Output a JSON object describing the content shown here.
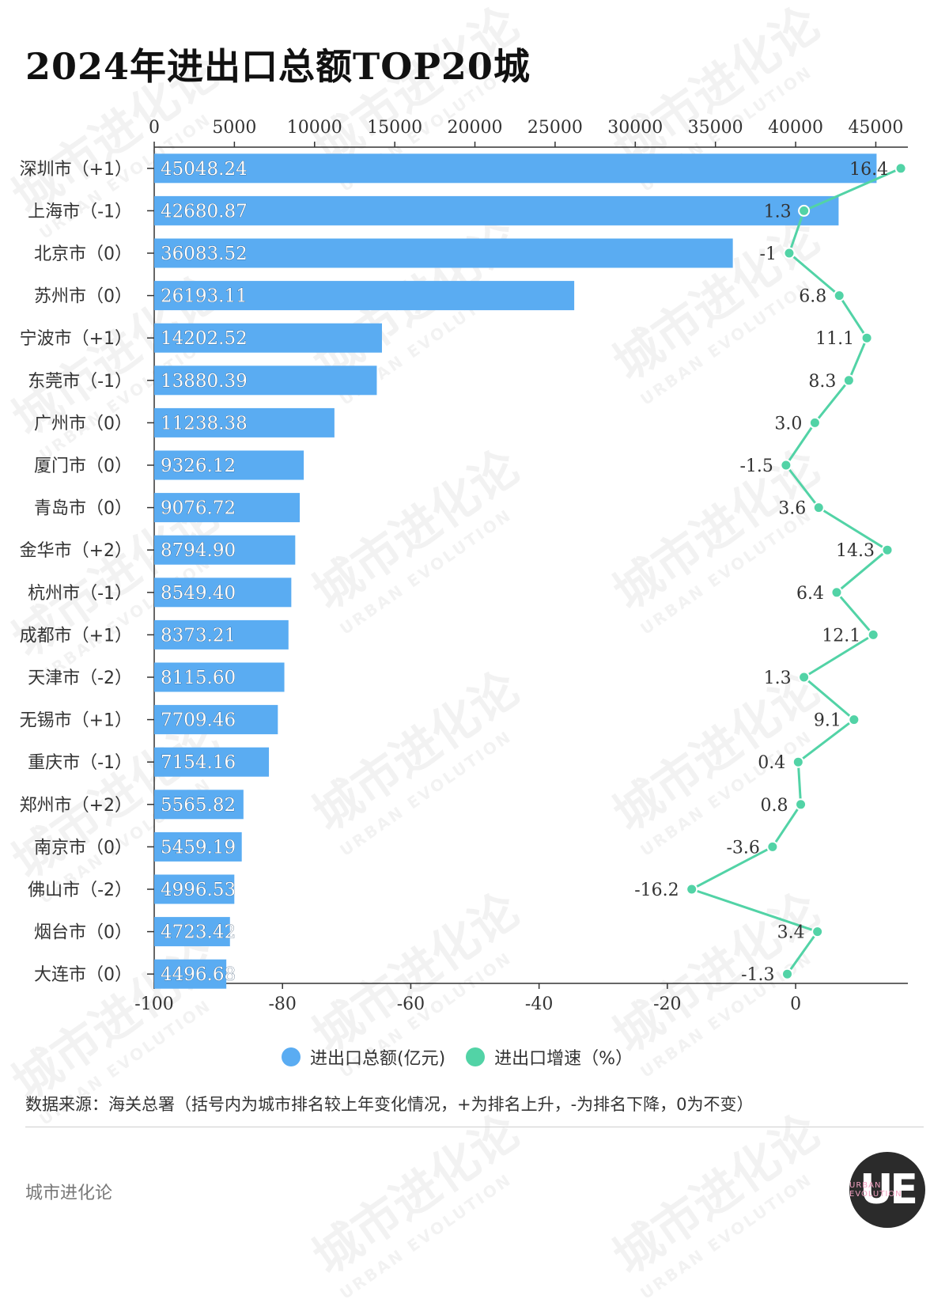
{
  "title": "2024年进出口总额TOP20城",
  "legend": {
    "series1": "进出口总额(亿元)",
    "series2": "进出口增速（%）"
  },
  "source": "数据来源：海关总署（括号内为城市排名较上年变化情况，+为排名上升，-为排名下降，0为不变）",
  "footer": "城市进化论",
  "logo": {
    "main": "UE",
    "small": "URBAN EVOLUTION"
  },
  "watermark": {
    "main": "城市进化论",
    "sub": "URBAN EVOLUTION"
  },
  "colors": {
    "bar": "#5aacf2",
    "line": "#52d3a6",
    "axis": "#333333"
  },
  "chart_data": {
    "type": "bar",
    "title": "2024年进出口总额TOP20城",
    "categories": [
      "深圳市（+1）",
      "上海市（-1）",
      "北京市（0）",
      "苏州市（0）",
      "宁波市（+1）",
      "东莞市（-1）",
      "广州市（0）",
      "厦门市（0）",
      "青岛市（0）",
      "金华市（+2）",
      "杭州市（-1）",
      "成都市（+1）",
      "天津市（-2）",
      "无锡市（+1）",
      "重庆市（-1）",
      "郑州市（+2）",
      "南京市（0）",
      "佛山市（-2）",
      "烟台市（0）",
      "大连市（0）"
    ],
    "series": [
      {
        "name": "进出口总额(亿元)",
        "type": "bar",
        "values": [
          45048.24,
          42680.87,
          36083.52,
          26193.11,
          14202.52,
          13880.39,
          11238.38,
          9326.12,
          9076.72,
          8794.9,
          8549.4,
          8373.21,
          8115.6,
          7709.46,
          7154.16,
          5565.82,
          5459.19,
          4996.53,
          4723.42,
          4496.68
        ],
        "labels": [
          "45048.24",
          "42680.87",
          "36083.52",
          "26193.11",
          "14202.52",
          "13880.39",
          "11238.38",
          "9326.12",
          "9076.72",
          "8794.90",
          "8549.40",
          "8373.21",
          "8115.60",
          "7709.46",
          "7154.16",
          "5565.82",
          "5459.19",
          "4996.53",
          "4723.42",
          "4496.68"
        ]
      },
      {
        "name": "进出口增速（%）",
        "type": "line",
        "values": [
          16.4,
          1.3,
          -1,
          6.8,
          11.1,
          8.3,
          3.0,
          -1.5,
          3.6,
          14.3,
          6.4,
          12.1,
          1.3,
          9.1,
          0.4,
          0.8,
          -3.6,
          -16.2,
          3.4,
          -1.3
        ],
        "labels": [
          "16.4",
          "1.3",
          "-1",
          "6.8",
          "11.1",
          "8.3",
          "3.0",
          "-1.5",
          "3.6",
          "14.3",
          "6.4",
          "12.1",
          "1.3",
          "9.1",
          "0.4",
          "0.8",
          "-3.6",
          "-16.2",
          "3.4",
          "-1.3"
        ]
      }
    ],
    "top_axis": {
      "ticks": [
        0,
        5000,
        10000,
        15000,
        20000,
        25000,
        30000,
        35000,
        40000,
        45000
      ],
      "range": [
        0,
        47000
      ]
    },
    "bottom_axis": {
      "ticks": [
        -100,
        -80,
        -60,
        -40,
        -20,
        0
      ],
      "range": [
        -100,
        17.5
      ]
    },
    "legend_position": "bottom-center",
    "grid": false
  }
}
